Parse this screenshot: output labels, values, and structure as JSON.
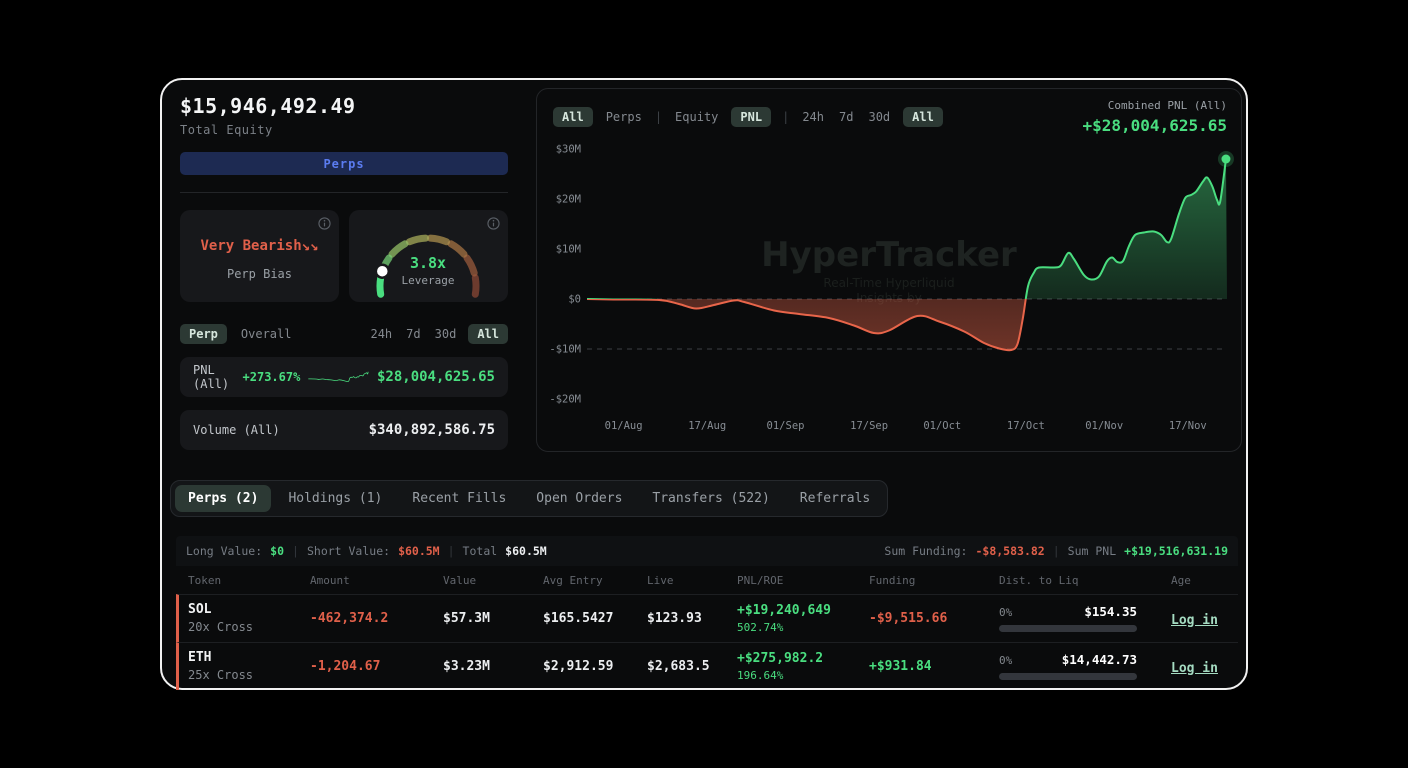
{
  "colors": {
    "accent_green": "#4ade80",
    "accent_red": "#e0604a",
    "link_green": "#a5dcc2",
    "button_blue_text": "#5b7cf0",
    "button_blue_bg": "#1d2a52"
  },
  "left_panel": {
    "total_equity_value": "$15,946,492.49",
    "total_equity_label": "Total Equity",
    "perps_button_label": "Perps",
    "bias_card": {
      "value": "Very Bearish↘↘",
      "label": "Perp Bias"
    },
    "leverage_card": {
      "value": "3.8x",
      "label": "Leverage"
    },
    "mini_tabs_left": [
      {
        "label": "Perp",
        "selected": true
      },
      {
        "label": "Overall",
        "selected": false
      }
    ],
    "mini_tabs_right": [
      {
        "label": "24h",
        "selected": false
      },
      {
        "label": "7d",
        "selected": false
      },
      {
        "label": "30d",
        "selected": false
      },
      {
        "label": "All",
        "selected": true
      }
    ],
    "pnl_row": {
      "label": "PNL (All)",
      "pct": "+273.67%",
      "value": "$28,004,625.65"
    },
    "volume_row": {
      "label": "Volume (All)",
      "value": "$340,892,586.75"
    }
  },
  "chart_panel": {
    "filters": [
      {
        "label": "All",
        "style": "pill"
      },
      {
        "label": "Perps",
        "style": "text"
      },
      {
        "label": "|",
        "style": "sep"
      },
      {
        "label": "Equity",
        "style": "text"
      },
      {
        "label": "PNL",
        "style": "pill"
      },
      {
        "label": "|",
        "style": "sep"
      },
      {
        "label": "24h",
        "style": "text"
      },
      {
        "label": "7d",
        "style": "text"
      },
      {
        "label": "30d",
        "style": "text"
      },
      {
        "label": "All",
        "style": "pill"
      }
    ],
    "combined_label": "Combined PNL (All)",
    "combined_value": "+$28,004,625.65",
    "watermark_title": "HyperTracker",
    "watermark_sub1": "Real-Time Hyperliquid",
    "watermark_sub2": "Insights by"
  },
  "chart_data": {
    "type": "line",
    "title": "Combined PNL (All)",
    "y_unit": "USD (millions)",
    "x_unit": "days since 25/Jul",
    "ylim": [
      -20,
      32
    ],
    "t_range": [
      0,
      122.5
    ],
    "legend": "none",
    "grid": "dashed lines at $0 and -$10M only",
    "positive_color": "#4ade80",
    "negative_color": "#e8654a",
    "dashed_gridlines": [
      0,
      -10
    ],
    "end_dot_value": 28.0,
    "y_ticks": [
      {
        "v": 30,
        "label": "$30M"
      },
      {
        "v": 20,
        "label": "$20M"
      },
      {
        "v": 10,
        "label": "$10M"
      },
      {
        "v": 0,
        "label": "$0"
      },
      {
        "v": -10,
        "label": "-$10M"
      },
      {
        "v": -20,
        "label": "-$20M"
      }
    ],
    "x_ticks": [
      {
        "t": 7,
        "label": "01/Aug"
      },
      {
        "t": 23,
        "label": "17/Aug"
      },
      {
        "t": 38,
        "label": "01/Sep"
      },
      {
        "t": 54,
        "label": "17/Sep"
      },
      {
        "t": 68,
        "label": "01/Oct"
      },
      {
        "t": 84,
        "label": "17/Oct"
      },
      {
        "t": 99,
        "label": "01/Nov"
      },
      {
        "t": 115,
        "label": "17/Nov"
      }
    ],
    "points": [
      [
        0,
        0
      ],
      [
        5,
        -0.1
      ],
      [
        13.8,
        -0.2
      ],
      [
        17.6,
        -1
      ],
      [
        20.9,
        -1.9
      ],
      [
        24.3,
        -1.2
      ],
      [
        28.1,
        -0.3
      ],
      [
        30.1,
        -0.6
      ],
      [
        35.8,
        -2.3
      ],
      [
        40.6,
        -3
      ],
      [
        46.3,
        -3.8
      ],
      [
        51.1,
        -5.3
      ],
      [
        54.9,
        -6.8
      ],
      [
        57.8,
        -6.3
      ],
      [
        63.2,
        -3.4
      ],
      [
        67.4,
        -4.5
      ],
      [
        72.2,
        -6.5
      ],
      [
        76,
        -8.8
      ],
      [
        78.9,
        -9.9
      ],
      [
        81.2,
        -10.2
      ],
      [
        82.4,
        -9
      ],
      [
        83.4,
        -4
      ],
      [
        84.4,
        2.5
      ],
      [
        85.5,
        5.2
      ],
      [
        86.5,
        6.3
      ],
      [
        89.4,
        6.3
      ],
      [
        90.7,
        6.7
      ],
      [
        92.1,
        9.2
      ],
      [
        93.2,
        8
      ],
      [
        95.1,
        4.8
      ],
      [
        96.5,
        3.9
      ],
      [
        98,
        4.5
      ],
      [
        99.5,
        7.5
      ],
      [
        100.5,
        8.3
      ],
      [
        101.5,
        7.4
      ],
      [
        102.6,
        7.6
      ],
      [
        103.7,
        10.5
      ],
      [
        104.9,
        12.8
      ],
      [
        106.6,
        13.3
      ],
      [
        108.5,
        13.5
      ],
      [
        109.9,
        12.8
      ],
      [
        111,
        11.4
      ],
      [
        111.8,
        12
      ],
      [
        113.3,
        17
      ],
      [
        114.5,
        20.2
      ],
      [
        115.6,
        20.8
      ],
      [
        116.6,
        21.5
      ],
      [
        117.9,
        23.5
      ],
      [
        118.7,
        24.3
      ],
      [
        119.7,
        22.5
      ],
      [
        120.6,
        19.8
      ],
      [
        121.2,
        19.5
      ],
      [
        122.3,
        28
      ]
    ]
  },
  "bottom_tabs": [
    {
      "label": "Perps (2)",
      "selected": true
    },
    {
      "label": "Holdings (1)",
      "selected": false
    },
    {
      "label": "Recent Fills",
      "selected": false
    },
    {
      "label": "Open Orders",
      "selected": false
    },
    {
      "label": "Transfers (522)",
      "selected": false
    },
    {
      "label": "Referrals",
      "selected": false
    }
  ],
  "positions": {
    "summary": {
      "long_label": "Long Value:",
      "long_value": "$0",
      "short_label": "Short Value:",
      "short_value": "$60.5M",
      "total_label": "Total",
      "total_value": "$60.5M",
      "sum_funding_label": "Sum Funding:",
      "sum_funding_value": "-$8,583.82",
      "sum_pnl_label": "Sum PNL",
      "sum_pnl_value": "+$19,516,631.19"
    },
    "columns": [
      "Token",
      "Amount",
      "Value",
      "Avg Entry",
      "Live",
      "PNL/ROE",
      "Funding",
      "Dist. to Liq",
      "Age"
    ],
    "rows": [
      {
        "token": "SOL",
        "leverage": "20x Cross",
        "amount": "-462,374.2",
        "value": "$57.3M",
        "avg_entry": "$165.5427",
        "live": "$123.93",
        "pnl": "+$19,240,649",
        "roe": "502.74%",
        "funding": "-$9,515.66",
        "liq_pct": "0%",
        "liq_value": "$154.35",
        "age_link": "Log in"
      },
      {
        "token": "ETH",
        "leverage": "25x Cross",
        "amount": "-1,204.67",
        "value": "$3.23M",
        "avg_entry": "$2,912.59",
        "live": "$2,683.5",
        "pnl": "+$275,982.2",
        "roe": "196.64%",
        "funding": "+$931.84",
        "liq_pct": "0%",
        "liq_value": "$14,442.73",
        "age_link": "Log in"
      }
    ]
  }
}
